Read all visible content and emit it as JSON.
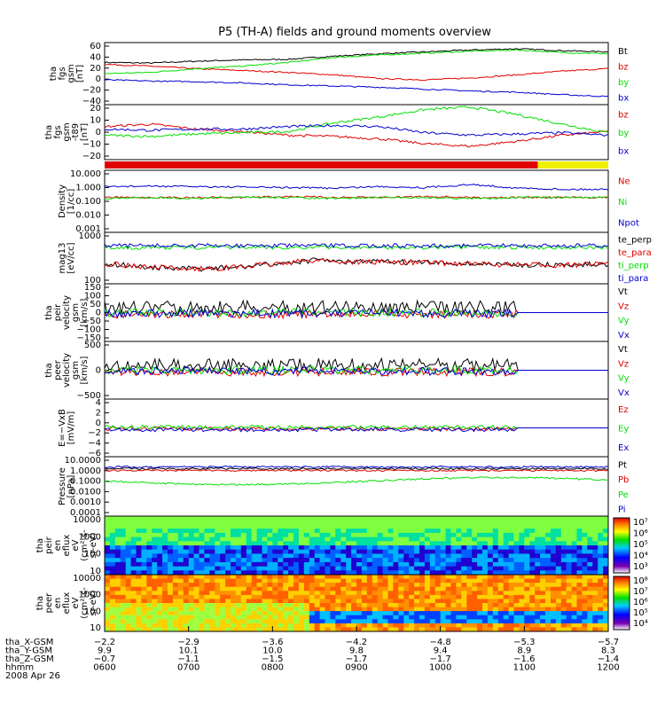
{
  "title": "P5 (TH-A) fields and ground moments overview",
  "colors": {
    "black": "#000000",
    "red": "#e00000",
    "green": "#00e000",
    "blue": "#0000d0",
    "yellow": "#f0f000"
  },
  "chart_data": [
    {
      "type": "line",
      "id": "fgs_gsm",
      "ylabel": [
        "tha",
        "fgs",
        "gsm",
        "[nT]"
      ],
      "yticks": [
        "60",
        "40",
        "20",
        "0",
        "−20",
        "−40"
      ],
      "ylim": [
        -40,
        60
      ],
      "series": [
        {
          "name": "Bt",
          "color": "black",
          "values": [
            28,
            27,
            30,
            32,
            33,
            38,
            42,
            45,
            48,
            50,
            47,
            45
          ]
        },
        {
          "name": "bz",
          "color": "red",
          "values": [
            25,
            22,
            18,
            15,
            12,
            8,
            2,
            0,
            3,
            8,
            14,
            18
          ]
        },
        {
          "name": "by",
          "color": "green",
          "values": [
            10,
            12,
            18,
            22,
            28,
            36,
            40,
            43,
            46,
            48,
            44,
            42
          ]
        },
        {
          "name": "bx",
          "color": "blue",
          "values": [
            0,
            -2,
            -3,
            -5,
            -8,
            -10,
            -12,
            -15,
            -18,
            -20,
            -24,
            -27
          ]
        }
      ]
    },
    {
      "type": "line",
      "id": "fgs_dsl",
      "ylabel": [
        "tha",
        "fgs",
        "gsm",
        "-t89",
        "[nT]"
      ],
      "yticks": [
        "20",
        "10",
        "0",
        "−10",
        "−20"
      ],
      "ylim": [
        -25,
        20
      ],
      "series": [
        {
          "name": "bz",
          "color": "red",
          "values": [
            2,
            4,
            0,
            -2,
            -5,
            -6,
            -8,
            -12,
            -14,
            -10,
            -5,
            -2
          ]
        },
        {
          "name": "by",
          "color": "green",
          "values": [
            -5,
            -6,
            -4,
            -3,
            -2,
            5,
            10,
            16,
            18,
            12,
            4,
            -3
          ]
        },
        {
          "name": "bx",
          "color": "blue",
          "values": [
            0,
            -1,
            0,
            0,
            2,
            3,
            2,
            -3,
            -5,
            -4,
            -3,
            -5
          ]
        }
      ]
    },
    {
      "type": "line",
      "id": "density",
      "ylabel": [
        "Density",
        "[1/cc]"
      ],
      "yticks": [
        "10.000",
        "1.000",
        "0.100",
        "0.010",
        "0.001"
      ],
      "log": true,
      "series": [
        {
          "name": "Ne",
          "color": "red",
          "values": [
            0.3,
            0.3,
            0.3,
            0.3,
            0.35,
            0.3,
            0.3,
            0.35,
            0.3,
            0.3,
            0.3,
            0.3
          ]
        },
        {
          "name": "Ni",
          "color": "green",
          "values": [
            0.25,
            0.3,
            0.25,
            0.3,
            0.3,
            0.25,
            0.3,
            0.3,
            0.25,
            0.3,
            0.3,
            0.3
          ]
        },
        {
          "name": "Npot",
          "color": "blue",
          "values": [
            1.5,
            1.6,
            1.5,
            1.4,
            1.3,
            1.2,
            1.5,
            1.3,
            2,
            1.2,
            1.0,
            1.0
          ]
        }
      ]
    },
    {
      "type": "line",
      "id": "temperature",
      "ylabel": [
        "mag13",
        "[eV/cc]"
      ],
      "yticks": [
        "1000",
        "100"
      ],
      "log": true,
      "series": [
        {
          "name": "te_perp",
          "color": "black"
        },
        {
          "name": "te_para",
          "color": "red"
        },
        {
          "name": "ti_perp",
          "color": "green"
        },
        {
          "name": "ti_para",
          "color": "blue"
        }
      ]
    },
    {
      "type": "line",
      "id": "peir_vel",
      "ylabel": [
        "tha",
        "peir",
        "velocity",
        "gsm",
        "[km/s]"
      ],
      "yticks": [
        "150",
        "100",
        "50",
        "0",
        "−50",
        "−100",
        "−150"
      ],
      "series": [
        {
          "name": "Vt",
          "color": "black"
        },
        {
          "name": "Vz",
          "color": "red"
        },
        {
          "name": "Vy",
          "color": "green"
        },
        {
          "name": "Vx",
          "color": "blue"
        }
      ]
    },
    {
      "type": "line",
      "id": "peer_vel",
      "ylabel": [
        "tha",
        "peer",
        "velocity",
        "gsm",
        "[km/s]"
      ],
      "yticks": [
        "500",
        "0",
        "−500"
      ],
      "series": [
        {
          "name": "Vt",
          "color": "black"
        },
        {
          "name": "Vz",
          "color": "red"
        },
        {
          "name": "Vy",
          "color": "green"
        },
        {
          "name": "Vx",
          "color": "blue"
        }
      ]
    },
    {
      "type": "line",
      "id": "efield",
      "ylabel": [
        "E=−VxB",
        "[mV/m]"
      ],
      "yticks": [
        "4",
        "2",
        "0",
        "−2",
        "−4",
        "−6"
      ],
      "series": [
        {
          "name": "Ez",
          "color": "red"
        },
        {
          "name": "Ey",
          "color": "green"
        },
        {
          "name": "Ex",
          "color": "blue"
        }
      ]
    },
    {
      "type": "line",
      "id": "pressure",
      "ylabel": [
        "Pressure",
        "[nPa]"
      ],
      "yticks": [
        "10.0000",
        "1.0000",
        "0.1000",
        "0.0100",
        "0.0010",
        "0.0001"
      ],
      "log": true,
      "series": [
        {
          "name": "Pt",
          "color": "black"
        },
        {
          "name": "Pb",
          "color": "red"
        },
        {
          "name": "Pe",
          "color": "green"
        },
        {
          "name": "Pi",
          "color": "blue"
        }
      ]
    },
    {
      "type": "heatmap",
      "id": "peir_spec",
      "ylabel": [
        "tha",
        "peir",
        "en",
        "eflux",
        "eV",
        "(cm²-s-",
        "sr-eV)"
      ],
      "yticks": [
        "10000",
        "1000",
        "100",
        "10"
      ],
      "colorbar_labels": [
        "10⁷",
        "10⁶",
        "10⁵",
        "10⁴",
        "10³"
      ]
    },
    {
      "type": "heatmap",
      "id": "peer_spec",
      "ylabel": [
        "tha",
        "peer",
        "en",
        "eflux",
        "eV",
        "(cm²-s-",
        "sr-eV)"
      ],
      "yticks": [
        "10000",
        "1000",
        "100",
        "10"
      ],
      "colorbar_labels": [
        "10⁸",
        "10⁷",
        "10⁶",
        "10⁵",
        "10⁴"
      ]
    }
  ],
  "xaxis": {
    "ticks": [
      "0600",
      "0700",
      "0800",
      "0900",
      "1000",
      "1100",
      "1200"
    ],
    "rows": [
      {
        "label": "tha_X-GSM",
        "values": [
          "−2.2",
          "−2.9",
          "−3.6",
          "−4.2",
          "−4.8",
          "−5.3",
          "−5.7"
        ]
      },
      {
        "label": "tha_Y-GSM",
        "values": [
          "9.9",
          "10.1",
          "10.0",
          "9.8",
          "9.4",
          "8.9",
          "8.3"
        ]
      },
      {
        "label": "tha_Z-GSM",
        "values": [
          "−0.7",
          "−1.1",
          "−1.5",
          "−1.7",
          "−1.7",
          "−1.6",
          "−1.4"
        ]
      },
      {
        "label": "hhmm",
        "values": [
          "0600",
          "0700",
          "0800",
          "0900",
          "1000",
          "1100",
          "1200"
        ]
      }
    ],
    "date": "2008 Apr 26"
  }
}
